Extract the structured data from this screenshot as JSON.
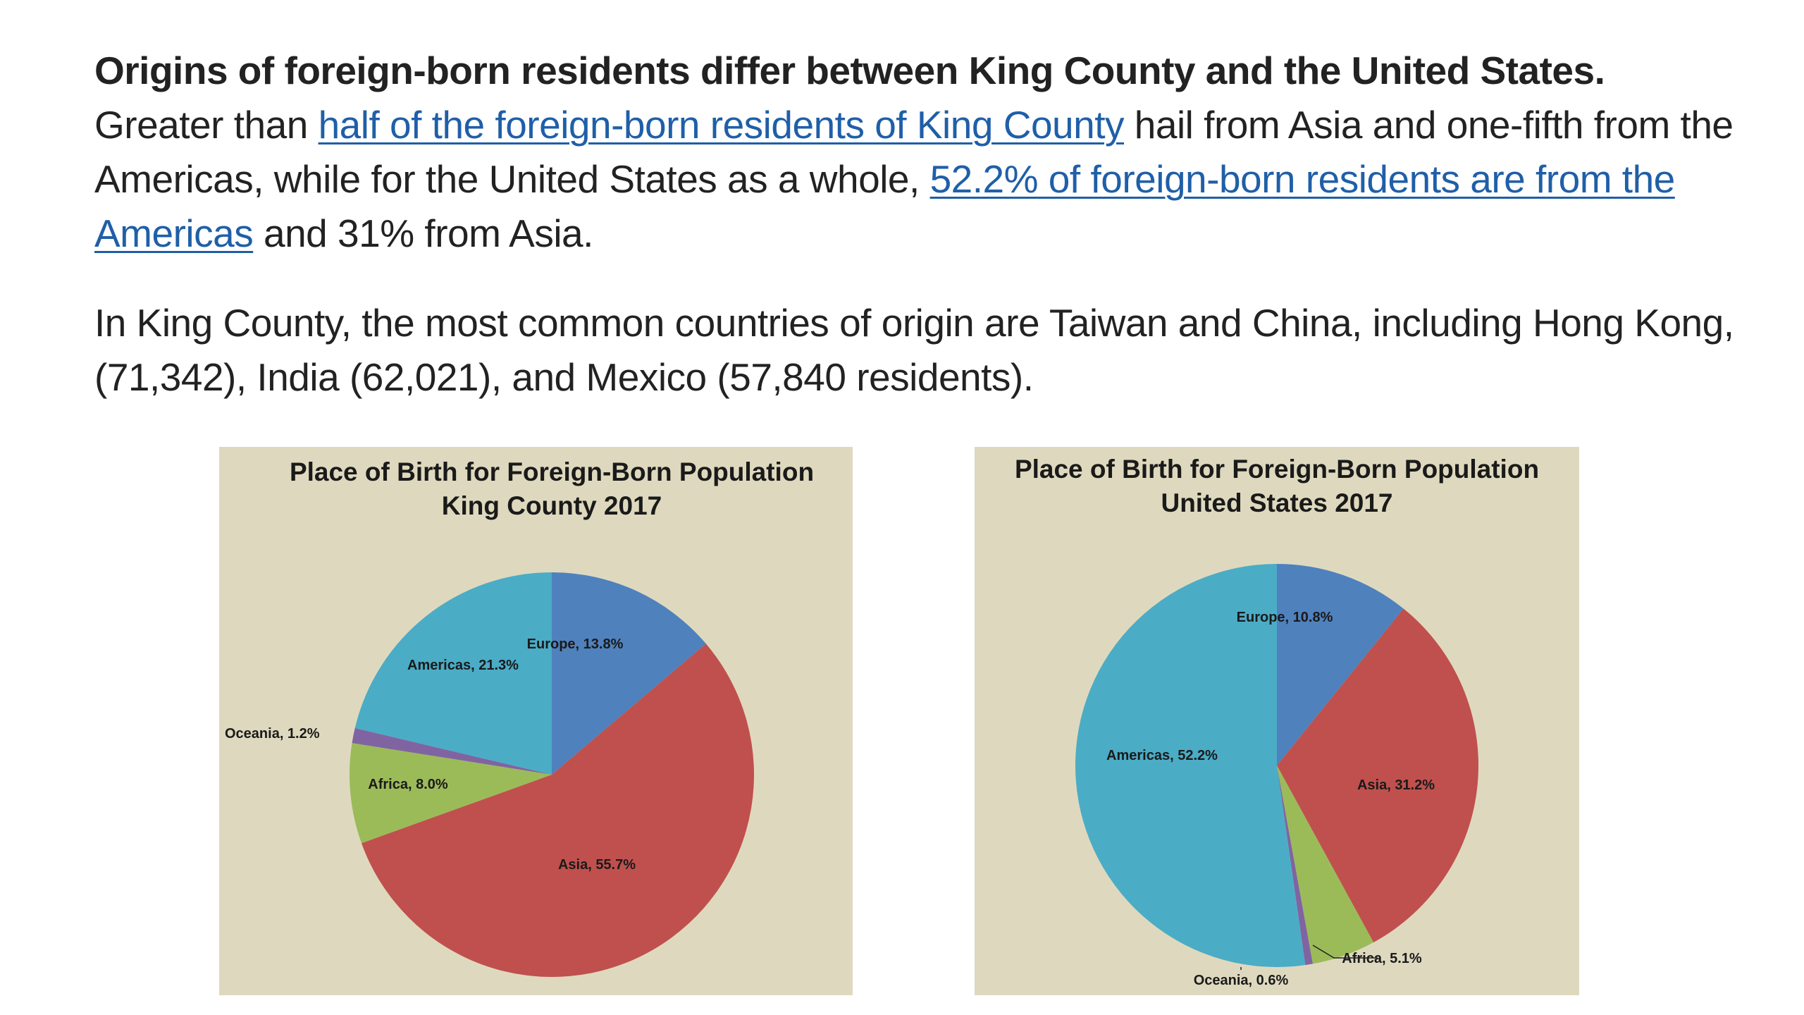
{
  "text": {
    "para1": {
      "lead": "Origins of foreign-born residents differ between King County and the United States.",
      "pre_link1": "Greater than",
      "link1": "half of the foreign-born residents of King County",
      "mid": "hail from Asia and one-fifth from the Americas, while for the United States as a whole,",
      "link2": "52.2% of foreign-born residents are from the Americas",
      "post": "and 31% from Asia."
    },
    "para2": "In King County, the most common countries of origin are Taiwan and China, including Hong Kong, (71,342), India (62,021), and Mexico (57,840 residents)."
  },
  "colors": {
    "link": "#1f5fa8",
    "chart_background": "#ded9be",
    "Europe": "#4f81bd",
    "Asia": "#c0504d",
    "Africa": "#9bbb59",
    "Oceania": "#8064a2",
    "Americas": "#4bacc6"
  },
  "chart_data": [
    {
      "type": "pie",
      "title_lines": [
        "Place of Birth for Foreign-Born Population",
        "King County 2017"
      ],
      "slices": [
        {
          "name": "Europe",
          "value": 13.8,
          "label": "Europe, 13.8%"
        },
        {
          "name": "Asia",
          "value": 55.7,
          "label": "Asia, 55.7%"
        },
        {
          "name": "Africa",
          "value": 8.0,
          "label": "Africa, 8.0%"
        },
        {
          "name": "Oceania",
          "value": 1.2,
          "label": "Oceania, 1.2%"
        },
        {
          "name": "Americas",
          "value": 21.3,
          "label": "Americas, 21.3%"
        }
      ]
    },
    {
      "type": "pie",
      "title_lines": [
        "Place of Birth for Foreign-Born Population",
        "United States 2017"
      ],
      "slices": [
        {
          "name": "Europe",
          "value": 10.8,
          "label": "Europe, 10.8%"
        },
        {
          "name": "Asia",
          "value": 31.2,
          "label": "Asia, 31.2%"
        },
        {
          "name": "Africa",
          "value": 5.1,
          "label": "Africa, 5.1%"
        },
        {
          "name": "Oceania",
          "value": 0.6,
          "label": "Oceania, 0.6%"
        },
        {
          "name": "Americas",
          "value": 52.2,
          "label": "Americas, 52.2%"
        }
      ]
    }
  ]
}
